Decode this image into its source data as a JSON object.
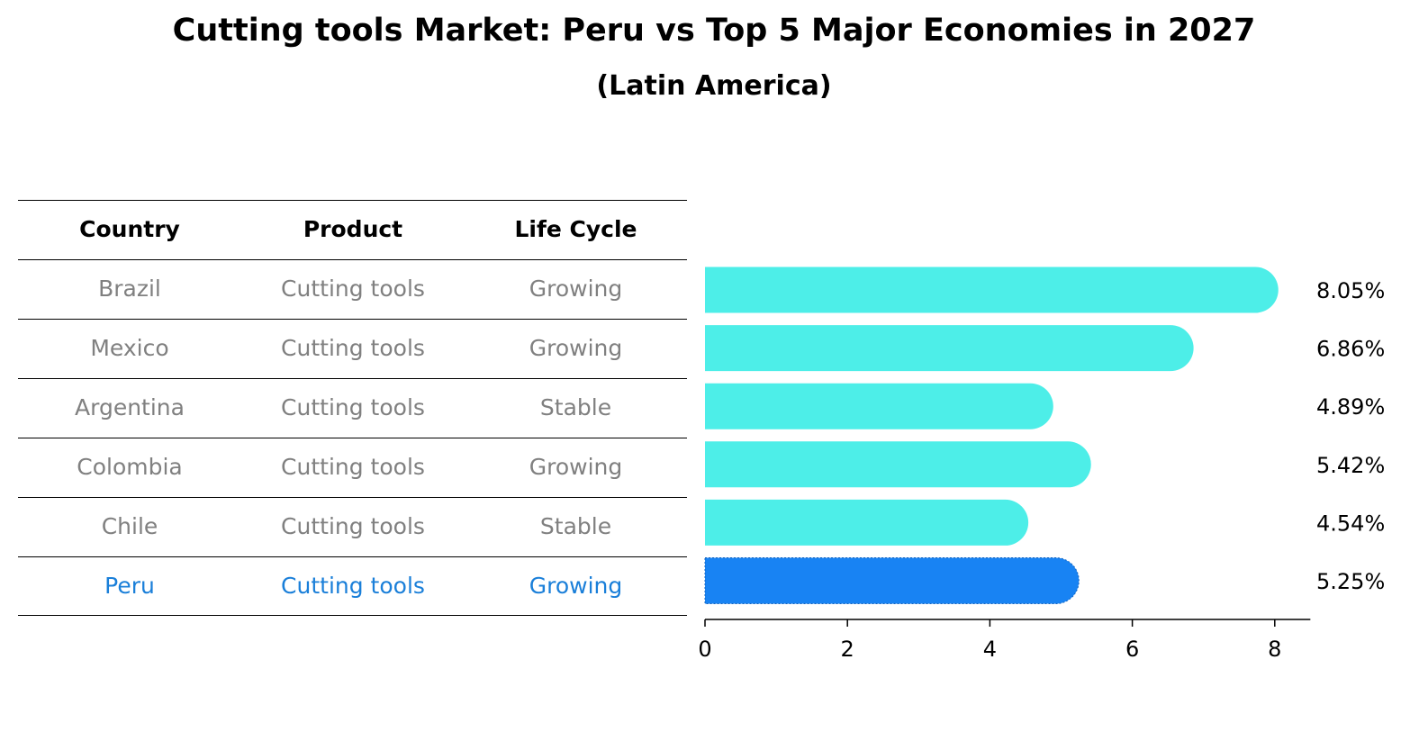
{
  "title": "Cutting tools Market: Peru vs Top 5 Major Economies in 2027",
  "subtitle": "(Latin America)",
  "table": {
    "headers": [
      "Country",
      "Product",
      "Life Cycle"
    ],
    "rows": [
      {
        "country": "Brazil",
        "product": "Cutting tools",
        "life_cycle": "Growing",
        "highlight": false
      },
      {
        "country": "Mexico",
        "product": "Cutting tools",
        "life_cycle": "Growing",
        "highlight": false
      },
      {
        "country": "Argentina",
        "product": "Cutting tools",
        "life_cycle": "Stable",
        "highlight": false
      },
      {
        "country": "Colombia",
        "product": "Cutting tools",
        "life_cycle": "Growing",
        "highlight": false
      },
      {
        "country": "Chile",
        "product": "Cutting tools",
        "life_cycle": "Stable",
        "highlight": false
      },
      {
        "country": "Peru",
        "product": "Cutting tools",
        "life_cycle": "Growing",
        "highlight": true
      }
    ]
  },
  "colors": {
    "bar": "#4deee8",
    "highlight_bar": "#1883f3",
    "highlight_text": "#1a7fd9",
    "row_text": "#808080"
  },
  "chart_data": {
    "type": "bar",
    "orientation": "horizontal",
    "categories": [
      "Brazil",
      "Mexico",
      "Argentina",
      "Colombia",
      "Chile",
      "Peru"
    ],
    "values": [
      8.05,
      6.86,
      4.89,
      5.42,
      4.54,
      5.25
    ],
    "data_labels": [
      "8.05%",
      "6.86%",
      "4.89%",
      "5.42%",
      "4.54%",
      "5.25%"
    ],
    "xlim": [
      0,
      8.5
    ],
    "xticks": [
      "0",
      "2",
      "4",
      "6",
      "8"
    ],
    "grid": false,
    "highlight_category": "Peru"
  }
}
